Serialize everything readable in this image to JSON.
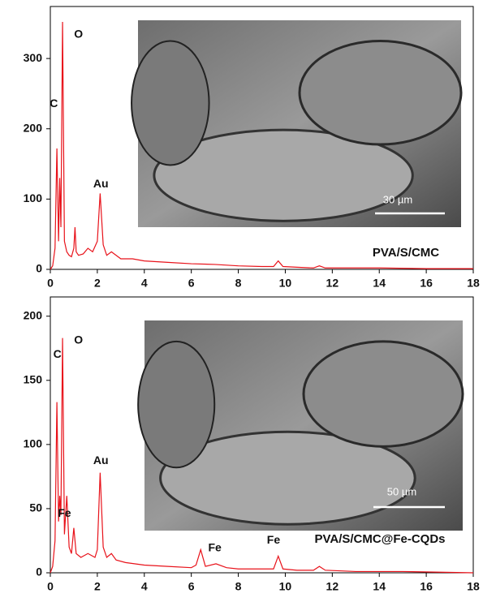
{
  "chart_data": [
    {
      "type": "line",
      "x": [
        0,
        0.1,
        0.2,
        0.28,
        0.35,
        0.4,
        0.45,
        0.52,
        0.6,
        0.7,
        0.8,
        0.9,
        1.0,
        1.05,
        1.1,
        1.2,
        1.4,
        1.6,
        1.8,
        2.0,
        2.12,
        2.25,
        2.4,
        2.6,
        3,
        3.5,
        4,
        5,
        6,
        7,
        8,
        9,
        9.5,
        9.7,
        9.9,
        10.5,
        11.2,
        11.45,
        11.7,
        12.5,
        14,
        16,
        18
      ],
      "series": [
        {
          "color": "#e8121a",
          "values": [
            0,
            5,
            30,
            172,
            40,
            130,
            60,
            352,
            40,
            25,
            20,
            18,
            30,
            60,
            25,
            20,
            22,
            30,
            25,
            40,
            108,
            35,
            20,
            25,
            15,
            15,
            12,
            10,
            8,
            7,
            5,
            4,
            4,
            12,
            4,
            3,
            2,
            5,
            2,
            2,
            2,
            1,
            1
          ]
        }
      ],
      "xlim": [
        0,
        18
      ],
      "xticks": [
        0,
        2,
        4,
        6,
        8,
        10,
        12,
        14,
        16,
        18
      ],
      "ylim": [
        0,
        374
      ],
      "yticks": [
        0,
        100,
        200,
        300
      ],
      "annotations": [
        {
          "text": "C",
          "x": 0.15,
          "y": 235
        },
        {
          "text": "O",
          "x": 1.2,
          "y": 334
        },
        {
          "text": "Au",
          "x": 2.15,
          "y": 121
        }
      ],
      "inset_label": "PVA/S/CMC",
      "scale_bar": "30 µm"
    },
    {
      "type": "line",
      "x": [
        0,
        0.1,
        0.2,
        0.28,
        0.35,
        0.4,
        0.45,
        0.52,
        0.6,
        0.7,
        0.8,
        0.9,
        1.0,
        1.1,
        1.3,
        1.6,
        1.9,
        2.0,
        2.12,
        2.25,
        2.4,
        2.6,
        2.8,
        3.2,
        4,
        5,
        6,
        6.2,
        6.4,
        6.6,
        7.05,
        7.5,
        8,
        9,
        9.5,
        9.7,
        9.9,
        10.5,
        11.2,
        11.45,
        11.7,
        13,
        15,
        18
      ],
      "series": [
        {
          "color": "#e8121a",
          "values": [
            0,
            5,
            25,
            133,
            40,
            60,
            45,
            183,
            30,
            60,
            20,
            15,
            35,
            15,
            12,
            15,
            12,
            18,
            78,
            20,
            12,
            15,
            10,
            8,
            6,
            5,
            4,
            6,
            18,
            5,
            7,
            4,
            3,
            3,
            3,
            13,
            3,
            2,
            2,
            5,
            2,
            1,
            1,
            0
          ]
        }
      ],
      "xlim": [
        0,
        18
      ],
      "xticks": [
        0,
        2,
        4,
        6,
        8,
        10,
        12,
        14,
        16,
        18
      ],
      "ylim": [
        0,
        215
      ],
      "yticks": [
        0,
        50,
        100,
        150,
        200
      ],
      "annotations": [
        {
          "text": "C",
          "x": 0.3,
          "y": 170
        },
        {
          "text": "O",
          "x": 1.2,
          "y": 181
        },
        {
          "text": "Fe",
          "x": 0.6,
          "y": 46
        },
        {
          "text": "Au",
          "x": 2.15,
          "y": 87
        },
        {
          "text": "Fe",
          "x": 7.0,
          "y": 19
        },
        {
          "text": "Fe",
          "x": 9.5,
          "y": 25
        }
      ],
      "inset_label": "PVA/S/CMC@Fe-CQDs",
      "scale_bar": "50 µm"
    }
  ]
}
